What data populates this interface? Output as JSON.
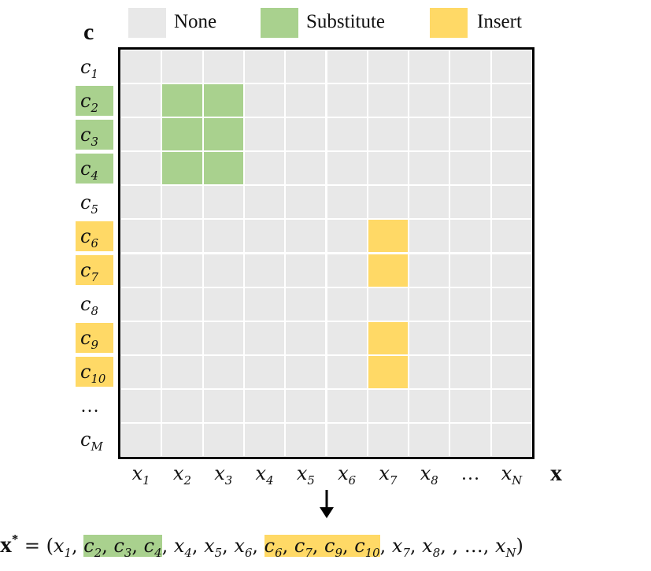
{
  "legend": [
    {
      "label": "None",
      "color": "#e8e8e8"
    },
    {
      "label": "Substitute",
      "color": "#a9d18e"
    },
    {
      "label": "Insert",
      "color": "#ffd966"
    }
  ],
  "axis_label_rows": "c",
  "axis_label_cols": "x",
  "rows": [
    {
      "base": "c",
      "sub": "1",
      "highlight": "none"
    },
    {
      "base": "c",
      "sub": "2",
      "highlight": "substitute"
    },
    {
      "base": "c",
      "sub": "3",
      "highlight": "substitute"
    },
    {
      "base": "c",
      "sub": "4",
      "highlight": "substitute"
    },
    {
      "base": "c",
      "sub": "5",
      "highlight": "none"
    },
    {
      "base": "c",
      "sub": "6",
      "highlight": "insert"
    },
    {
      "base": "c",
      "sub": "7",
      "highlight": "insert"
    },
    {
      "base": "c",
      "sub": "8",
      "highlight": "none"
    },
    {
      "base": "c",
      "sub": "9",
      "highlight": "insert"
    },
    {
      "base": "c",
      "sub": "10",
      "highlight": "insert"
    },
    {
      "base": "…",
      "sub": "",
      "highlight": "none"
    },
    {
      "base": "c",
      "sub": "M",
      "highlight": "none"
    }
  ],
  "columns": [
    {
      "base": "x",
      "sub": "1"
    },
    {
      "base": "x",
      "sub": "2"
    },
    {
      "base": "x",
      "sub": "3"
    },
    {
      "base": "x",
      "sub": "4"
    },
    {
      "base": "x",
      "sub": "5"
    },
    {
      "base": "x",
      "sub": "6"
    },
    {
      "base": "x",
      "sub": "7"
    },
    {
      "base": "x",
      "sub": "8"
    },
    {
      "base": "…",
      "sub": ""
    },
    {
      "base": "x",
      "sub": "N"
    }
  ],
  "cells": [
    {
      "row": 1,
      "col": 1,
      "type": "substitute"
    },
    {
      "row": 1,
      "col": 2,
      "type": "substitute"
    },
    {
      "row": 2,
      "col": 1,
      "type": "substitute"
    },
    {
      "row": 2,
      "col": 2,
      "type": "substitute"
    },
    {
      "row": 3,
      "col": 1,
      "type": "substitute"
    },
    {
      "row": 3,
      "col": 2,
      "type": "substitute"
    },
    {
      "row": 5,
      "col": 6,
      "type": "insert"
    },
    {
      "row": 6,
      "col": 6,
      "type": "insert"
    },
    {
      "row": 8,
      "col": 6,
      "type": "insert"
    },
    {
      "row": 9,
      "col": 6,
      "type": "insert"
    }
  ],
  "colors": {
    "none": "#e8e8e8",
    "substitute": "#a9d18e",
    "insert": "#ffd966",
    "gridline": "#ffffff"
  },
  "formula": {
    "lhs": "x",
    "star": "*",
    "equals": " = (",
    "groups": [
      {
        "tokens": [
          {
            "b": "x",
            "s": "1"
          }
        ],
        "highlight": "none"
      },
      {
        "tokens": [
          {
            "b": "c",
            "s": "2"
          },
          {
            "b": "c",
            "s": "3"
          },
          {
            "b": "c",
            "s": "4"
          }
        ],
        "highlight": "substitute"
      },
      {
        "tokens": [
          {
            "b": "x",
            "s": "4"
          },
          {
            "b": "x",
            "s": "5"
          },
          {
            "b": "x",
            "s": "6"
          }
        ],
        "highlight": "none"
      },
      {
        "tokens": [
          {
            "b": "c",
            "s": "6"
          },
          {
            "b": "c",
            "s": "7"
          },
          {
            "b": "c",
            "s": "9"
          },
          {
            "b": "c",
            "s": "10"
          }
        ],
        "highlight": "insert"
      },
      {
        "tokens": [
          {
            "b": "x",
            "s": "7"
          },
          {
            "b": "x",
            "s": "8"
          }
        ],
        "highlight": "none"
      }
    ],
    "tail": "  , …, ",
    "last": {
      "b": "x",
      "s": "N"
    },
    "close": ")"
  }
}
